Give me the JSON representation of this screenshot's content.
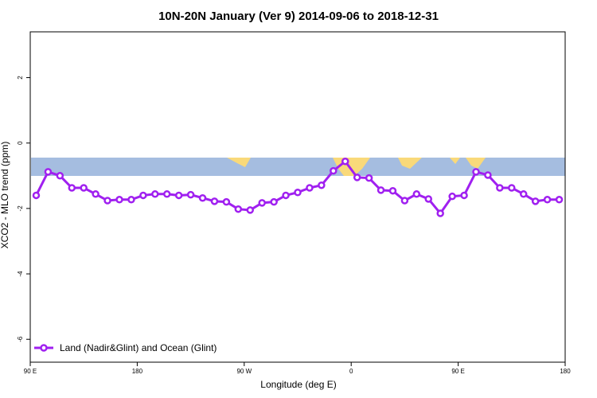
{
  "chart_data": {
    "type": "line",
    "title": "10N-20N January (Ver 9)   2014-09-06 to 2018-12-31",
    "x_label": "Longitude (deg E)",
    "y_label": "XCO2 - MLO trend (ppm)",
    "x": [
      95,
      105,
      115,
      125,
      135,
      145,
      155,
      165,
      175,
      185,
      195,
      205,
      215,
      225,
      235,
      245,
      255,
      265,
      275,
      285,
      295,
      305,
      315,
      325,
      335,
      345,
      355,
      365,
      375,
      385,
      395,
      405,
      415,
      425,
      435,
      445,
      455,
      465,
      475,
      485,
      495,
      505,
      515,
      525,
      535
    ],
    "series": [
      {
        "name": "Land (Nadir&Glint) and Ocean (Glint)",
        "color": "#a020f0",
        "values": [
          -1.6,
          -0.88,
          -1.0,
          -1.37,
          -1.37,
          -1.56,
          -1.76,
          -1.73,
          -1.73,
          -1.6,
          -1.56,
          -1.56,
          -1.6,
          -1.58,
          -1.68,
          -1.78,
          -1.8,
          -2.02,
          -2.05,
          -1.83,
          -1.8,
          -1.6,
          -1.51,
          -1.37,
          -1.29,
          -0.85,
          -0.56,
          -1.05,
          -1.07,
          -1.44,
          -1.46,
          -1.76,
          -1.56,
          -1.71,
          -2.15,
          -1.63,
          -1.6,
          -0.88,
          -0.98,
          -1.37,
          -1.37,
          -1.56,
          -1.78,
          -1.73,
          -1.73
        ]
      }
    ],
    "xlim": [
      90,
      540
    ],
    "xticks": [
      {
        "value": 90,
        "label": "90 E"
      },
      {
        "value": 180,
        "label": "180"
      },
      {
        "value": 270,
        "label": "90 W"
      },
      {
        "value": 360,
        "label": "0"
      },
      {
        "value": 450,
        "label": "90 E"
      },
      {
        "value": 540,
        "label": "180"
      }
    ],
    "ylim": [
      -6.7,
      3.4
    ],
    "yticks": [
      2,
      0,
      -2,
      -4,
      -6
    ],
    "legend": "bottom-left"
  }
}
